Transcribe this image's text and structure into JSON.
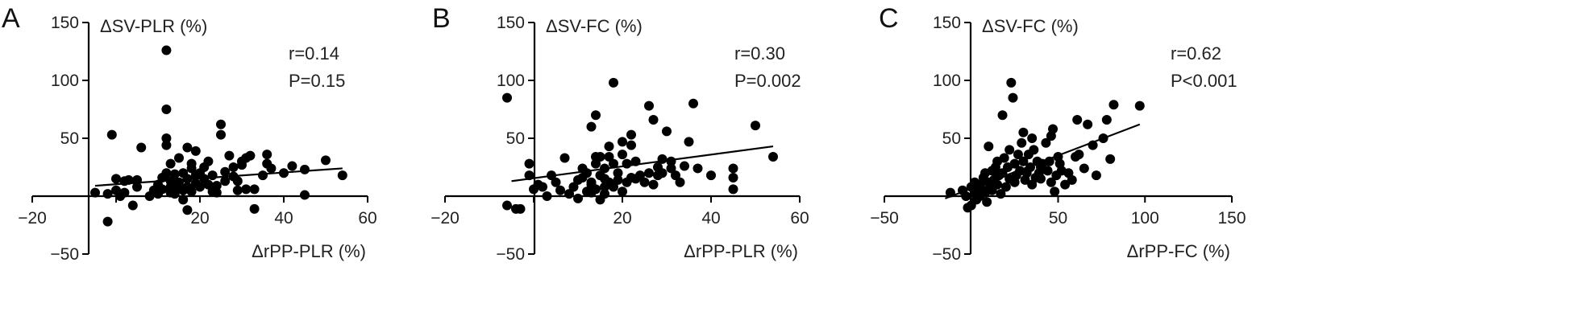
{
  "chart_data": [
    {
      "type": "scatter",
      "panel": "A",
      "xlabel": "ΔrPP-PLR (%)",
      "ylabel": "ΔSV-PLR (%)",
      "xlim": [
        -20,
        60
      ],
      "ylim": [
        -50,
        150
      ],
      "xticks": [
        "−20",
        "20",
        "40",
        "60"
      ],
      "yticks": [
        "−50",
        "50",
        "100",
        "150"
      ],
      "stats": [
        "r=0.14",
        "P=0.15"
      ],
      "fit_line": [
        [
          -5,
          9
        ],
        [
          54,
          24
        ]
      ],
      "points": [
        [
          -5,
          3
        ],
        [
          -2,
          2
        ],
        [
          -2,
          -22
        ],
        [
          -1,
          53
        ],
        [
          0,
          15
        ],
        [
          0,
          5
        ],
        [
          1,
          0
        ],
        [
          2,
          3
        ],
        [
          2,
          13
        ],
        [
          3,
          14
        ],
        [
          4,
          -8
        ],
        [
          5,
          8
        ],
        [
          5,
          14
        ],
        [
          6,
          42
        ],
        [
          8,
          0
        ],
        [
          9,
          5
        ],
        [
          10,
          10
        ],
        [
          10,
          2
        ],
        [
          11,
          6
        ],
        [
          11,
          16
        ],
        [
          12,
          44
        ],
        [
          12,
          75
        ],
        [
          12,
          126
        ],
        [
          12,
          50
        ],
        [
          12,
          20
        ],
        [
          13,
          8
        ],
        [
          13,
          3
        ],
        [
          13,
          13
        ],
        [
          13,
          28
        ],
        [
          14,
          2
        ],
        [
          14,
          13
        ],
        [
          14,
          19
        ],
        [
          15,
          33
        ],
        [
          15,
          7
        ],
        [
          15,
          12
        ],
        [
          16,
          5
        ],
        [
          16,
          20
        ],
        [
          16,
          -3
        ],
        [
          17,
          15
        ],
        [
          17,
          8
        ],
        [
          17,
          42
        ],
        [
          17,
          -12
        ],
        [
          18,
          28
        ],
        [
          18,
          24
        ],
        [
          18,
          4
        ],
        [
          19,
          18
        ],
        [
          19,
          39
        ],
        [
          19,
          11
        ],
        [
          20,
          8
        ],
        [
          20,
          20
        ],
        [
          21,
          15
        ],
        [
          21,
          25
        ],
        [
          22,
          10
        ],
        [
          22,
          30
        ],
        [
          23,
          4
        ],
        [
          23,
          18
        ],
        [
          24,
          9
        ],
        [
          24,
          3
        ],
        [
          25,
          53
        ],
        [
          25,
          62
        ],
        [
          26,
          13
        ],
        [
          26,
          21
        ],
        [
          27,
          35
        ],
        [
          28,
          17
        ],
        [
          28,
          25
        ],
        [
          29,
          5
        ],
        [
          29,
          13
        ],
        [
          30,
          27
        ],
        [
          30,
          30
        ],
        [
          31,
          6
        ],
        [
          31,
          33
        ],
        [
          32,
          35
        ],
        [
          33,
          6
        ],
        [
          33,
          -11
        ],
        [
          35,
          18
        ],
        [
          36,
          28
        ],
        [
          36,
          36
        ],
        [
          37,
          24
        ],
        [
          40,
          20
        ],
        [
          42,
          26
        ],
        [
          45,
          1
        ],
        [
          45,
          23
        ],
        [
          50,
          31
        ],
        [
          54,
          18
        ]
      ]
    },
    {
      "type": "scatter",
      "panel": "B",
      "xlabel": "ΔrPP-PLR (%)",
      "ylabel": "ΔSV-FC (%)",
      "xlim": [
        -20,
        60
      ],
      "ylim": [
        -50,
        150
      ],
      "xticks": [
        "−20",
        "20",
        "40",
        "60"
      ],
      "yticks": [
        "−50",
        "50",
        "100",
        "150"
      ],
      "stats": [
        "r=0.30",
        "P=0.002"
      ],
      "fit_line": [
        [
          -5,
          13
        ],
        [
          54,
          43
        ]
      ],
      "points": [
        [
          -6,
          85
        ],
        [
          -6,
          -8
        ],
        [
          -4,
          -11
        ],
        [
          -3,
          -11
        ],
        [
          -1,
          28
        ],
        [
          -1,
          18
        ],
        [
          0,
          6
        ],
        [
          1,
          10
        ],
        [
          2,
          8
        ],
        [
          3,
          0
        ],
        [
          4,
          18
        ],
        [
          5,
          12
        ],
        [
          6,
          5
        ],
        [
          7,
          33
        ],
        [
          8,
          2
        ],
        [
          9,
          8
        ],
        [
          10,
          14
        ],
        [
          10,
          -2
        ],
        [
          11,
          16
        ],
        [
          11,
          24
        ],
        [
          12,
          4
        ],
        [
          12,
          20
        ],
        [
          13,
          3
        ],
        [
          13,
          10
        ],
        [
          13,
          12
        ],
        [
          13,
          60
        ],
        [
          14,
          70
        ],
        [
          14,
          28
        ],
        [
          14,
          34
        ],
        [
          14,
          6
        ],
        [
          15,
          18
        ],
        [
          15,
          -3
        ],
        [
          15,
          34
        ],
        [
          16,
          8
        ],
        [
          16,
          24
        ],
        [
          16,
          15
        ],
        [
          16,
          2
        ],
        [
          17,
          34
        ],
        [
          17,
          12
        ],
        [
          17,
          43
        ],
        [
          18,
          98
        ],
        [
          18,
          28
        ],
        [
          18,
          8
        ],
        [
          19,
          20
        ],
        [
          19,
          14
        ],
        [
          20,
          47
        ],
        [
          20,
          36
        ],
        [
          20,
          4
        ],
        [
          21,
          28
        ],
        [
          21,
          12
        ],
        [
          22,
          44
        ],
        [
          22,
          16
        ],
        [
          22,
          53
        ],
        [
          23,
          30
        ],
        [
          23,
          15
        ],
        [
          24,
          18
        ],
        [
          25,
          12
        ],
        [
          26,
          78
        ],
        [
          26,
          20
        ],
        [
          27,
          10
        ],
        [
          27,
          66
        ],
        [
          28,
          25
        ],
        [
          28,
          18
        ],
        [
          29,
          32
        ],
        [
          29,
          20
        ],
        [
          30,
          56
        ],
        [
          31,
          30
        ],
        [
          31,
          24
        ],
        [
          32,
          18
        ],
        [
          33,
          12
        ],
        [
          34,
          26
        ],
        [
          35,
          47
        ],
        [
          36,
          80
        ],
        [
          37,
          24
        ],
        [
          40,
          18
        ],
        [
          45,
          24
        ],
        [
          45,
          16
        ],
        [
          45,
          6
        ],
        [
          50,
          61
        ],
        [
          54,
          34
        ]
      ]
    },
    {
      "type": "scatter",
      "panel": "C",
      "xlabel": "ΔrPP-FC (%)",
      "ylabel": "ΔSV-FC (%)",
      "xlim": [
        -50,
        150
      ],
      "ylim": [
        -50,
        150
      ],
      "xticks": [
        "−50",
        "50",
        "100",
        "150"
      ],
      "yticks": [
        "−50",
        "50",
        "100",
        "150"
      ],
      "stats": [
        "r=0.62",
        "P<0.001"
      ],
      "fit_line": [
        [
          -15,
          -2
        ],
        [
          97,
          62
        ]
      ],
      "points": [
        [
          -12,
          3
        ],
        [
          -5,
          5
        ],
        [
          -3,
          0
        ],
        [
          -2,
          -10
        ],
        [
          0,
          -8
        ],
        [
          0,
          8
        ],
        [
          2,
          4
        ],
        [
          2,
          12
        ],
        [
          3,
          -3
        ],
        [
          5,
          0
        ],
        [
          5,
          10
        ],
        [
          6,
          6
        ],
        [
          7,
          16
        ],
        [
          8,
          3
        ],
        [
          8,
          20
        ],
        [
          9,
          -5
        ],
        [
          10,
          12
        ],
        [
          10,
          43
        ],
        [
          11,
          8
        ],
        [
          12,
          22
        ],
        [
          12,
          5
        ],
        [
          13,
          14
        ],
        [
          14,
          25
        ],
        [
          15,
          30
        ],
        [
          15,
          10
        ],
        [
          16,
          18
        ],
        [
          17,
          2
        ],
        [
          18,
          70
        ],
        [
          18,
          20
        ],
        [
          19,
          33
        ],
        [
          20,
          8
        ],
        [
          21,
          25
        ],
        [
          22,
          15
        ],
        [
          22,
          40
        ],
        [
          23,
          98
        ],
        [
          24,
          85
        ],
        [
          25,
          28
        ],
        [
          25,
          12
        ],
        [
          26,
          18
        ],
        [
          27,
          36
        ],
        [
          28,
          22
        ],
        [
          29,
          46
        ],
        [
          30,
          55
        ],
        [
          30,
          30
        ],
        [
          31,
          14
        ],
        [
          32,
          20
        ],
        [
          33,
          36
        ],
        [
          34,
          25
        ],
        [
          35,
          50
        ],
        [
          35,
          10
        ],
        [
          36,
          40
        ],
        [
          37,
          16
        ],
        [
          38,
          30
        ],
        [
          39,
          20
        ],
        [
          40,
          25
        ],
        [
          40,
          15
        ],
        [
          41,
          28
        ],
        [
          43,
          46
        ],
        [
          44,
          22
        ],
        [
          45,
          30
        ],
        [
          46,
          52
        ],
        [
          46,
          12
        ],
        [
          47,
          58
        ],
        [
          48,
          4
        ],
        [
          49,
          18
        ],
        [
          50,
          34
        ],
        [
          51,
          28
        ],
        [
          52,
          22
        ],
        [
          54,
          10
        ],
        [
          56,
          20
        ],
        [
          58,
          14
        ],
        [
          60,
          34
        ],
        [
          61,
          66
        ],
        [
          62,
          36
        ],
        [
          65,
          24
        ],
        [
          67,
          62
        ],
        [
          70,
          44
        ],
        [
          72,
          18
        ],
        [
          76,
          50
        ],
        [
          78,
          66
        ],
        [
          80,
          32
        ],
        [
          82,
          79
        ],
        [
          97,
          78
        ]
      ]
    }
  ]
}
